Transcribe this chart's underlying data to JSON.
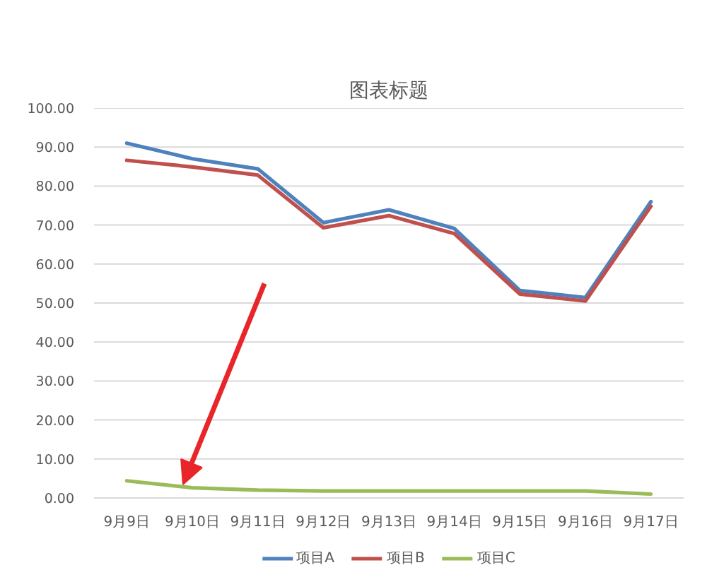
{
  "chart_data": {
    "type": "line",
    "title": "图表标题",
    "categories": [
      "9月9日",
      "9月10日",
      "9月11日",
      "9月12日",
      "9月13日",
      "9月14日",
      "9月15日",
      "9月16日",
      "9月17日"
    ],
    "series": [
      {
        "name": "项目A",
        "color": "#4f81bd",
        "values": [
          91.0,
          87.0,
          84.4,
          70.6,
          73.9,
          69.1,
          53.2,
          51.4,
          76.0
        ]
      },
      {
        "name": "项目B",
        "color": "#c0504d",
        "values": [
          86.6,
          84.9,
          82.8,
          69.3,
          72.4,
          67.8,
          52.3,
          50.5,
          74.8
        ]
      },
      {
        "name": "项目C",
        "color": "#9bbb59",
        "values": [
          4.4,
          2.6,
          2.0,
          1.8,
          1.8,
          1.8,
          1.8,
          1.8,
          1.0
        ]
      }
    ],
    "ylim": [
      0,
      100
    ],
    "yticks": [
      {
        "value": 0,
        "label": "0.00"
      },
      {
        "value": 10,
        "label": "10.00"
      },
      {
        "value": 20,
        "label": "20.00"
      },
      {
        "value": 30,
        "label": "30.00"
      },
      {
        "value": 40,
        "label": "40.00"
      },
      {
        "value": 50,
        "label": "50.00"
      },
      {
        "value": 60,
        "label": "60.00"
      },
      {
        "value": 70,
        "label": "70.00"
      },
      {
        "value": 80,
        "label": "80.00"
      },
      {
        "value": 90,
        "label": "90.00"
      },
      {
        "value": 100,
        "label": "100.00"
      }
    ],
    "grid": "y",
    "legend": "bottom",
    "line_style": "solid"
  }
}
